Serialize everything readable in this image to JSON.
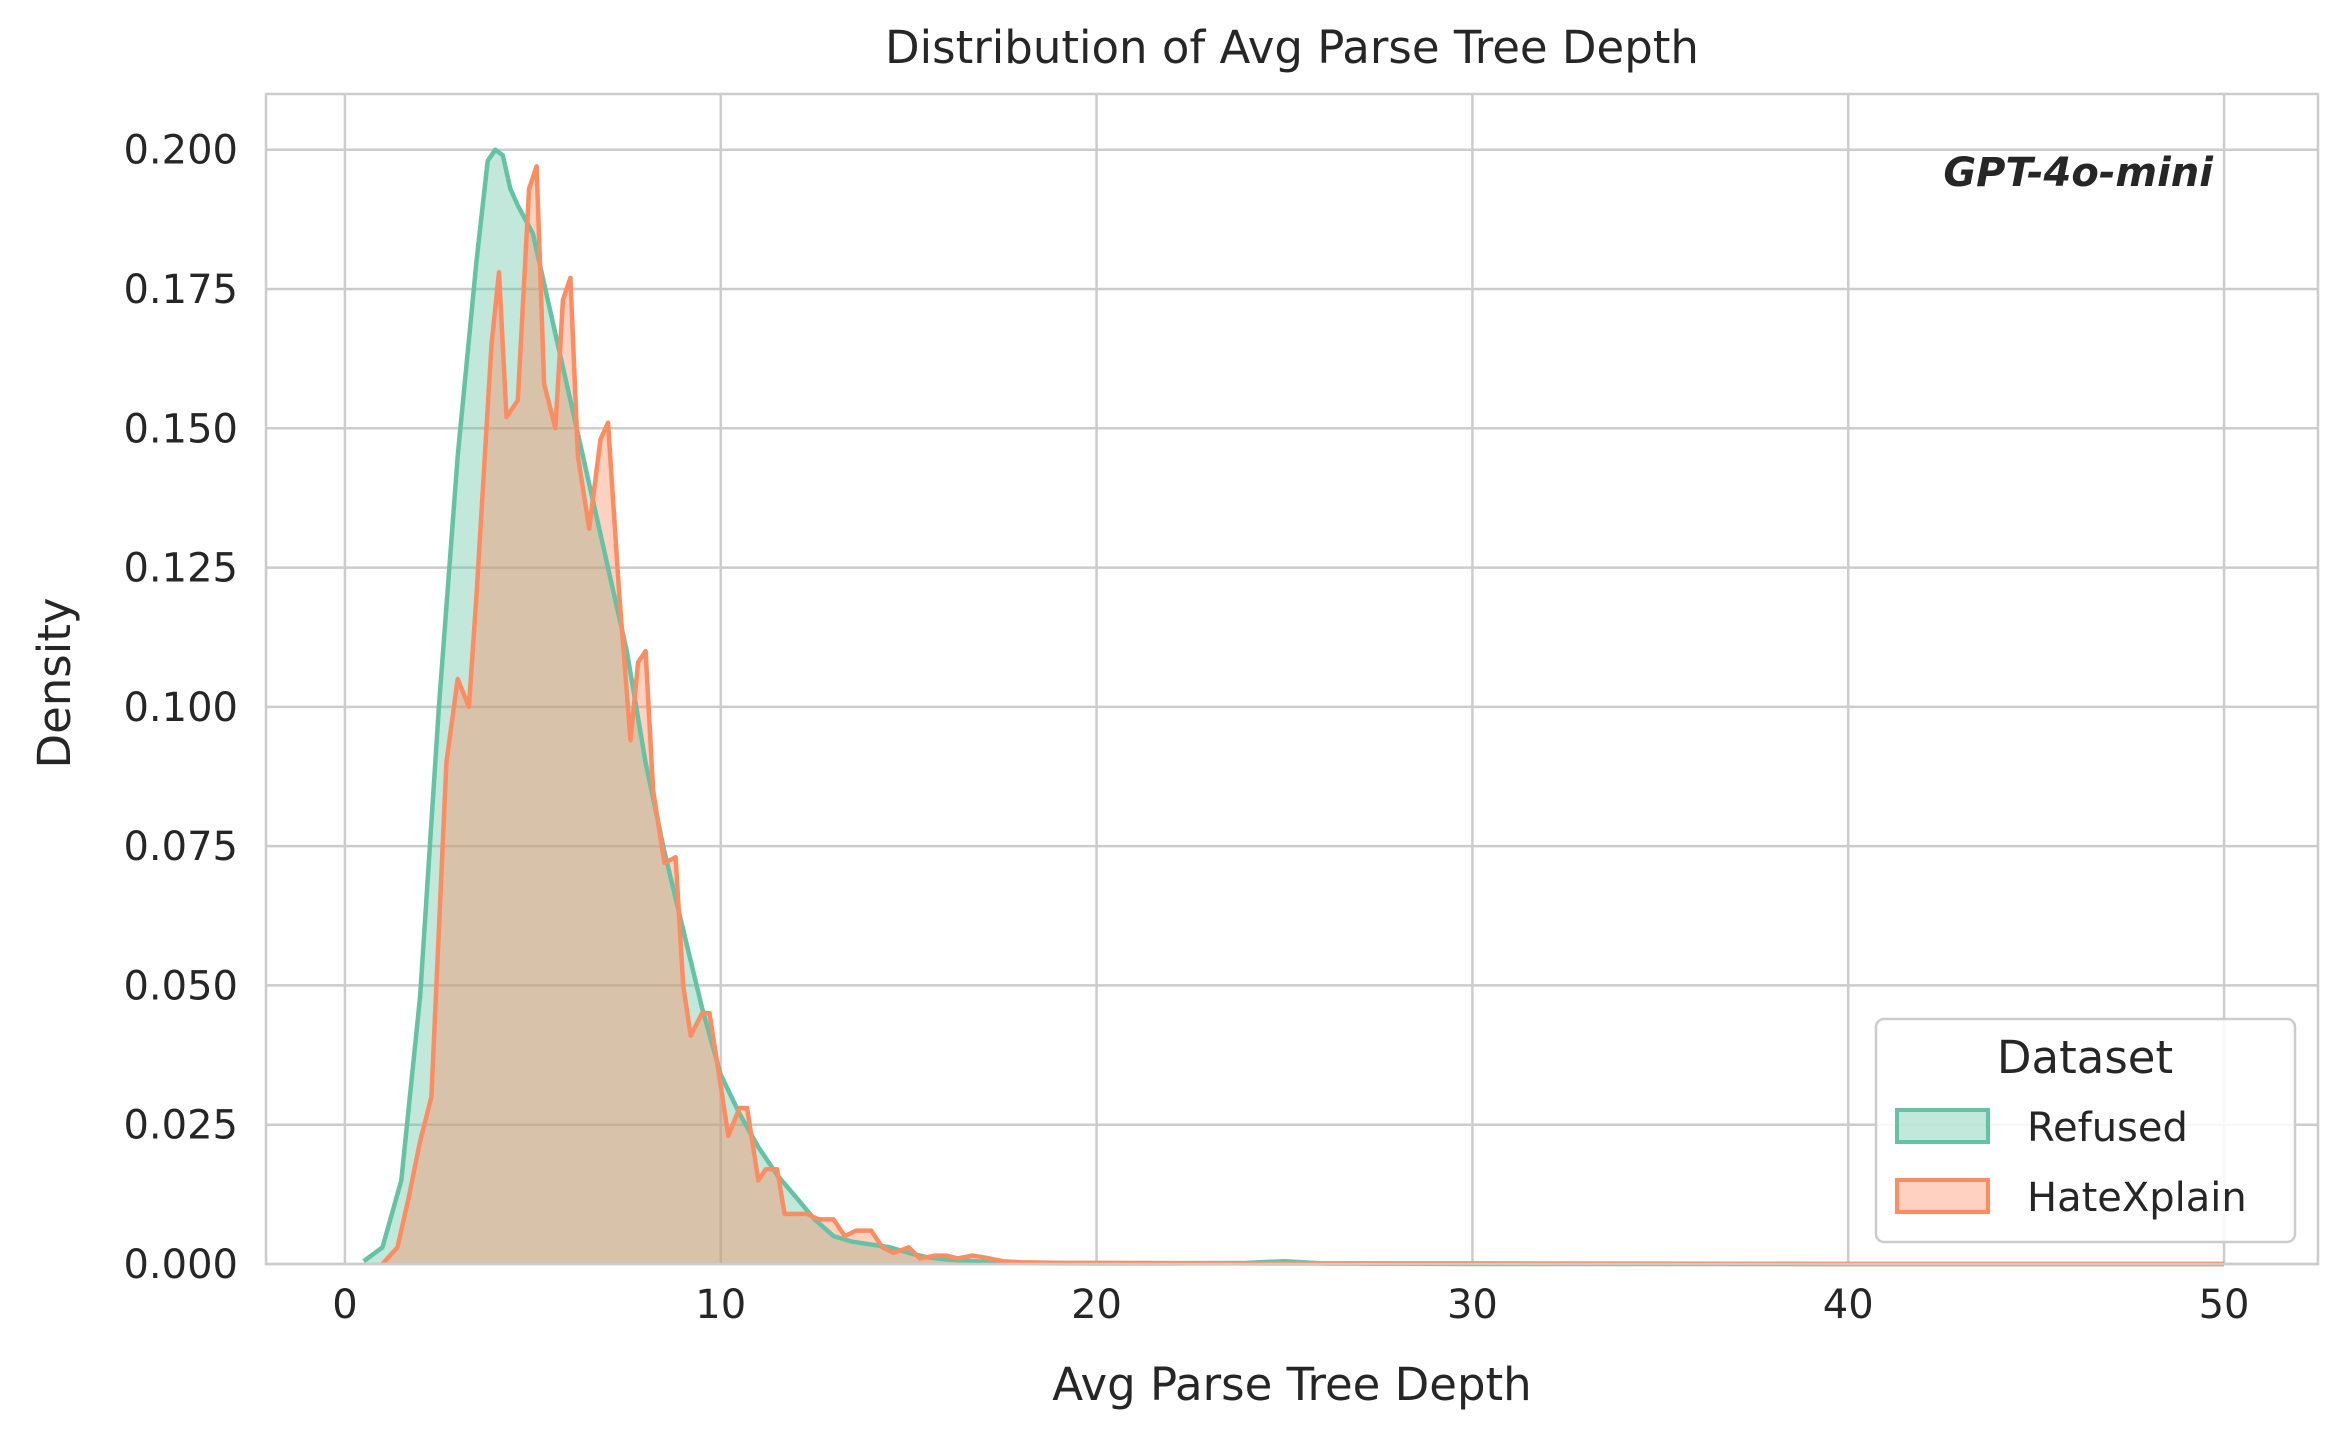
{
  "chart_data": {
    "type": "area",
    "title": "Distribution of Avg Parse Tree Depth",
    "xlabel": "Avg Parse Tree Depth",
    "ylabel": "Density",
    "annotation": "GPT-4o-mini",
    "xlim": [
      -2.1,
      52.5
    ],
    "ylim": [
      0,
      0.21
    ],
    "xticks": [
      0,
      10,
      20,
      30,
      40,
      50
    ],
    "xtick_labels": [
      "0",
      "10",
      "20",
      "30",
      "40",
      "50"
    ],
    "yticks": [
      0,
      0.025,
      0.05,
      0.075,
      0.1,
      0.125,
      0.15,
      0.175,
      0.2
    ],
    "ytick_labels": [
      "0.000",
      "0.025",
      "0.050",
      "0.075",
      "0.100",
      "0.125",
      "0.150",
      "0.175",
      "0.200"
    ],
    "grid": true,
    "legend": {
      "title": "Dataset",
      "position": "lower-right"
    },
    "series": [
      {
        "name": "Refused",
        "color": "#66c2a5",
        "x": [
          0.5,
          1.0,
          1.5,
          2.0,
          2.5,
          3.0,
          3.5,
          3.8,
          4.0,
          4.2,
          4.4,
          4.6,
          5.0,
          5.5,
          6.0,
          6.5,
          7.0,
          7.5,
          8.0,
          8.5,
          9.0,
          9.5,
          10.0,
          10.5,
          11.0,
          11.5,
          12.0,
          12.5,
          13.0,
          13.5,
          14.0,
          14.5,
          15.0,
          15.5,
          16.0,
          17.0,
          18.0,
          20.0,
          22.0,
          24.0,
          25.0,
          26.0,
          30.0,
          40.0,
          50.0
        ],
        "y": [
          0.0005,
          0.003,
          0.015,
          0.048,
          0.1,
          0.145,
          0.18,
          0.198,
          0.2,
          0.199,
          0.193,
          0.19,
          0.185,
          0.17,
          0.155,
          0.14,
          0.125,
          0.11,
          0.09,
          0.074,
          0.06,
          0.046,
          0.034,
          0.027,
          0.021,
          0.016,
          0.012,
          0.008,
          0.005,
          0.004,
          0.0035,
          0.003,
          0.002,
          0.0012,
          0.0008,
          0.0004,
          0.0002,
          0.0001,
          0.0001,
          0.0002,
          0.0005,
          0.0001,
          0.0,
          0.0,
          0.0
        ]
      },
      {
        "name": "HateXplain",
        "color": "#fc8d62",
        "x": [
          1.0,
          1.4,
          1.7,
          2.0,
          2.3,
          2.5,
          2.7,
          3.0,
          3.3,
          3.5,
          3.9,
          4.1,
          4.3,
          4.6,
          4.9,
          5.1,
          5.3,
          5.6,
          5.8,
          6.0,
          6.2,
          6.5,
          6.8,
          7.0,
          7.3,
          7.6,
          7.8,
          8.0,
          8.2,
          8.5,
          8.8,
          9.0,
          9.2,
          9.5,
          9.7,
          10.0,
          10.2,
          10.5,
          10.7,
          11.0,
          11.2,
          11.5,
          11.7,
          12.0,
          12.3,
          12.6,
          13.0,
          13.3,
          13.6,
          14.0,
          14.3,
          14.6,
          15.0,
          15.3,
          15.7,
          16.0,
          16.3,
          16.7,
          17.0,
          17.5,
          18.0,
          19.0,
          20.0,
          25.0,
          30.0,
          40.0,
          50.0
        ],
        "y": [
          0.0,
          0.003,
          0.012,
          0.022,
          0.03,
          0.06,
          0.09,
          0.105,
          0.1,
          0.12,
          0.165,
          0.178,
          0.152,
          0.155,
          0.193,
          0.197,
          0.158,
          0.15,
          0.173,
          0.177,
          0.145,
          0.132,
          0.148,
          0.151,
          0.12,
          0.094,
          0.108,
          0.11,
          0.085,
          0.072,
          0.073,
          0.05,
          0.041,
          0.045,
          0.045,
          0.032,
          0.023,
          0.028,
          0.028,
          0.015,
          0.017,
          0.017,
          0.009,
          0.009,
          0.009,
          0.008,
          0.008,
          0.005,
          0.006,
          0.006,
          0.003,
          0.002,
          0.003,
          0.001,
          0.0015,
          0.0015,
          0.001,
          0.0015,
          0.0012,
          0.0005,
          0.0003,
          0.0002,
          0.0002,
          0.0001,
          0.0001,
          0.0,
          0.0
        ]
      }
    ]
  }
}
